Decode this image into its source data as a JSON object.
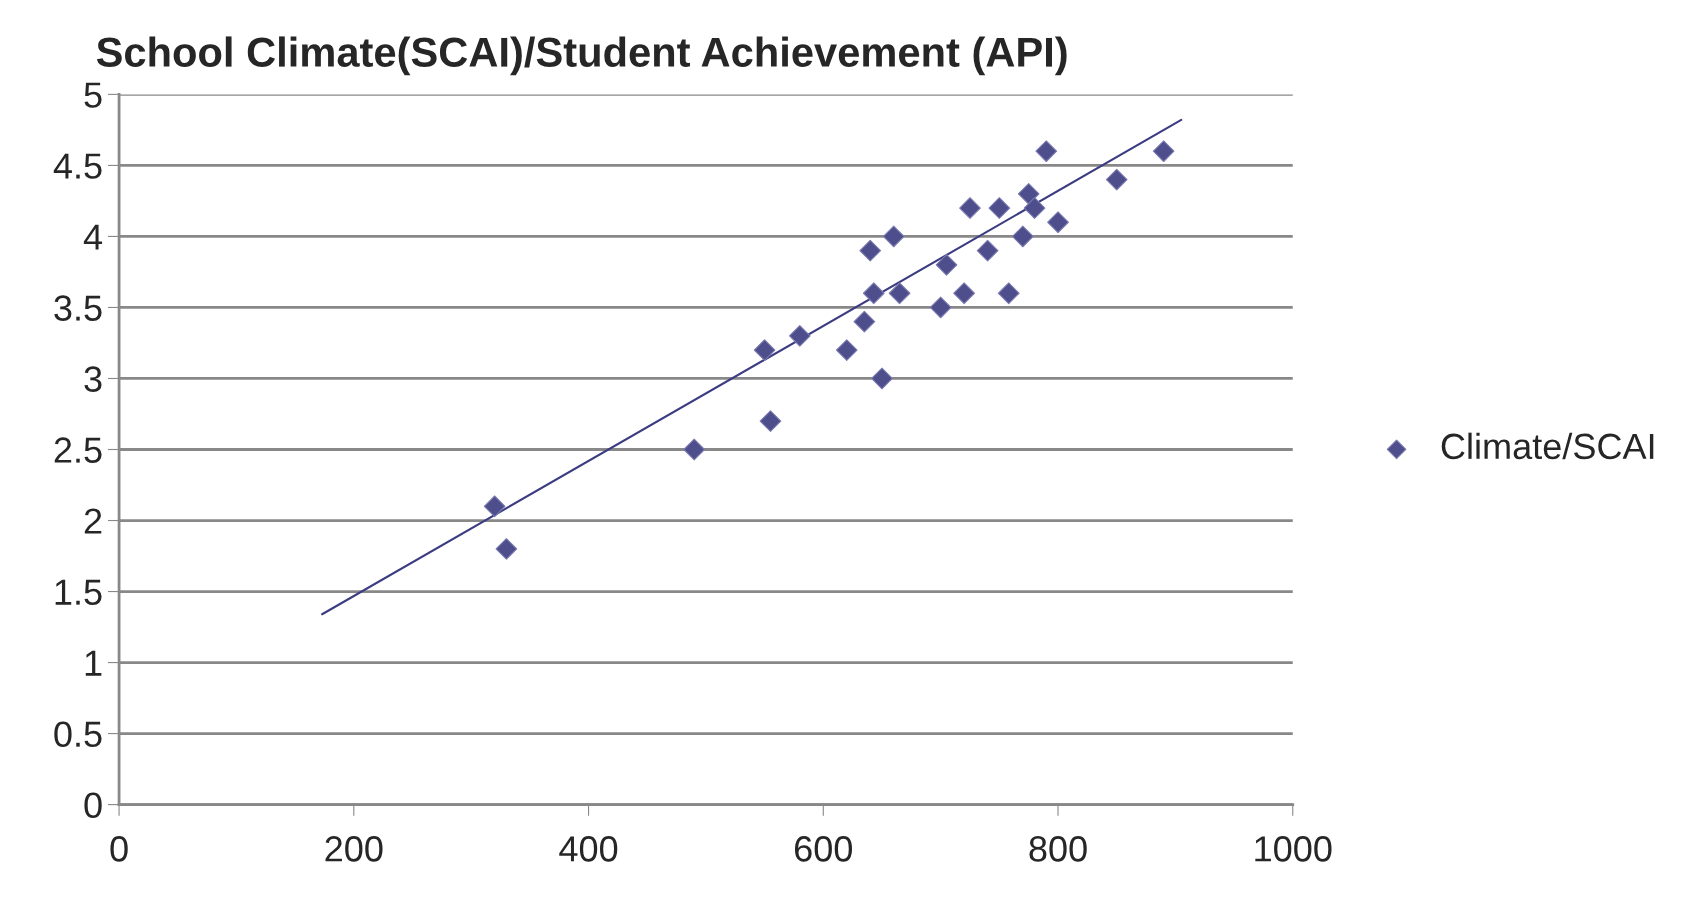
{
  "chart_data": {
    "type": "scatter",
    "title": "School Climate(SCAI)/Student Achievement (API)",
    "xlim": [
      0,
      1000
    ],
    "xticks": [
      0,
      200,
      400,
      600,
      800,
      1000
    ],
    "ylim": [
      0,
      5
    ],
    "yticks": [
      0,
      0.5,
      1,
      1.5,
      2,
      2.5,
      3,
      3.5,
      4,
      4.5,
      5
    ],
    "grid": "y",
    "legend": "right",
    "series": [
      {
        "name": "Climate/SCAI",
        "color": "#4e4e8c",
        "marker": "diamond",
        "x": [
          320,
          330,
          490,
          550,
          555,
          580,
          620,
          635,
          640,
          643,
          650,
          660,
          665,
          700,
          705,
          720,
          725,
          740,
          750,
          758,
          770,
          775,
          780,
          790,
          800,
          850,
          890
        ],
        "values": [
          2.1,
          1.8,
          2.5,
          3.2,
          2.7,
          3.3,
          3.2,
          3.4,
          3.9,
          3.6,
          3.0,
          4.0,
          3.6,
          3.5,
          3.8,
          3.6,
          4.2,
          3.9,
          4.2,
          3.6,
          4.0,
          4.3,
          4.2,
          4.6,
          4.1,
          4.4,
          4.6
        ]
      },
      {
        "type": "line",
        "color": "#3c3c82",
        "marker": "none",
        "x": [
          173,
          905
        ],
        "values": [
          1.34,
          4.82
        ]
      }
    ]
  }
}
